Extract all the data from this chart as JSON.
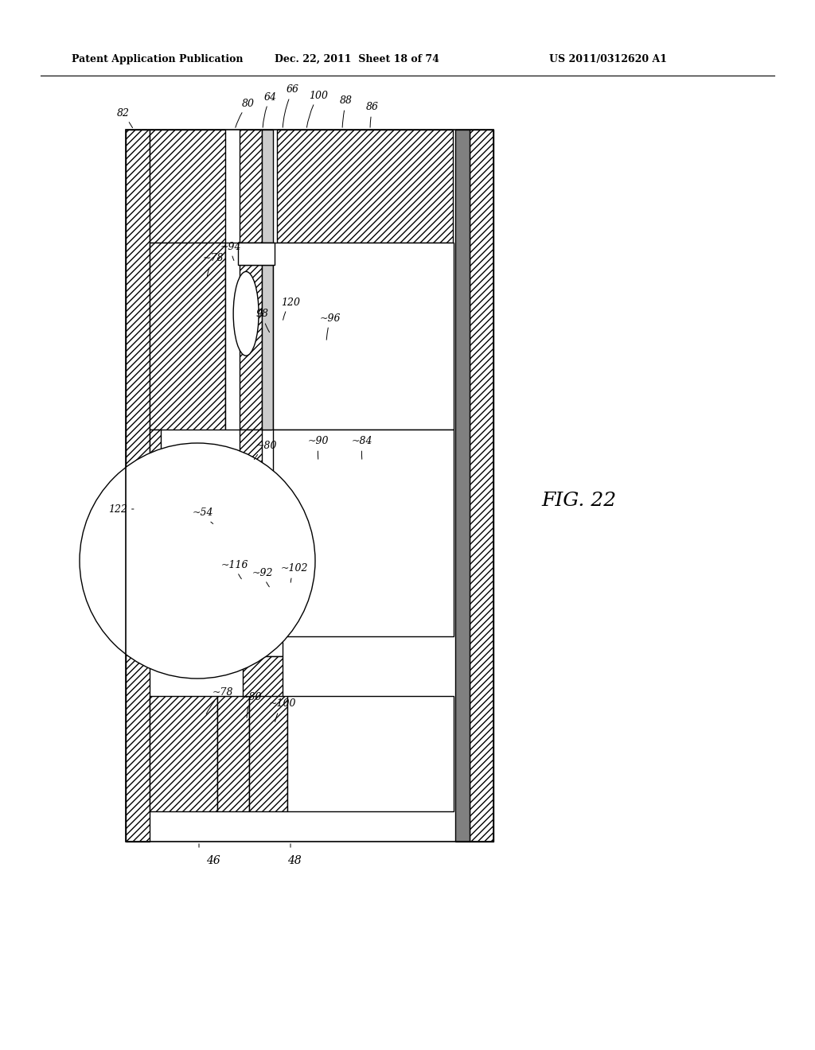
{
  "title_left": "Patent Application Publication",
  "title_mid": "Dec. 22, 2011  Sheet 18 of 74",
  "title_right": "US 2011/0312620 A1",
  "fig_label": "FIG. 22",
  "bg_color": "#ffffff"
}
